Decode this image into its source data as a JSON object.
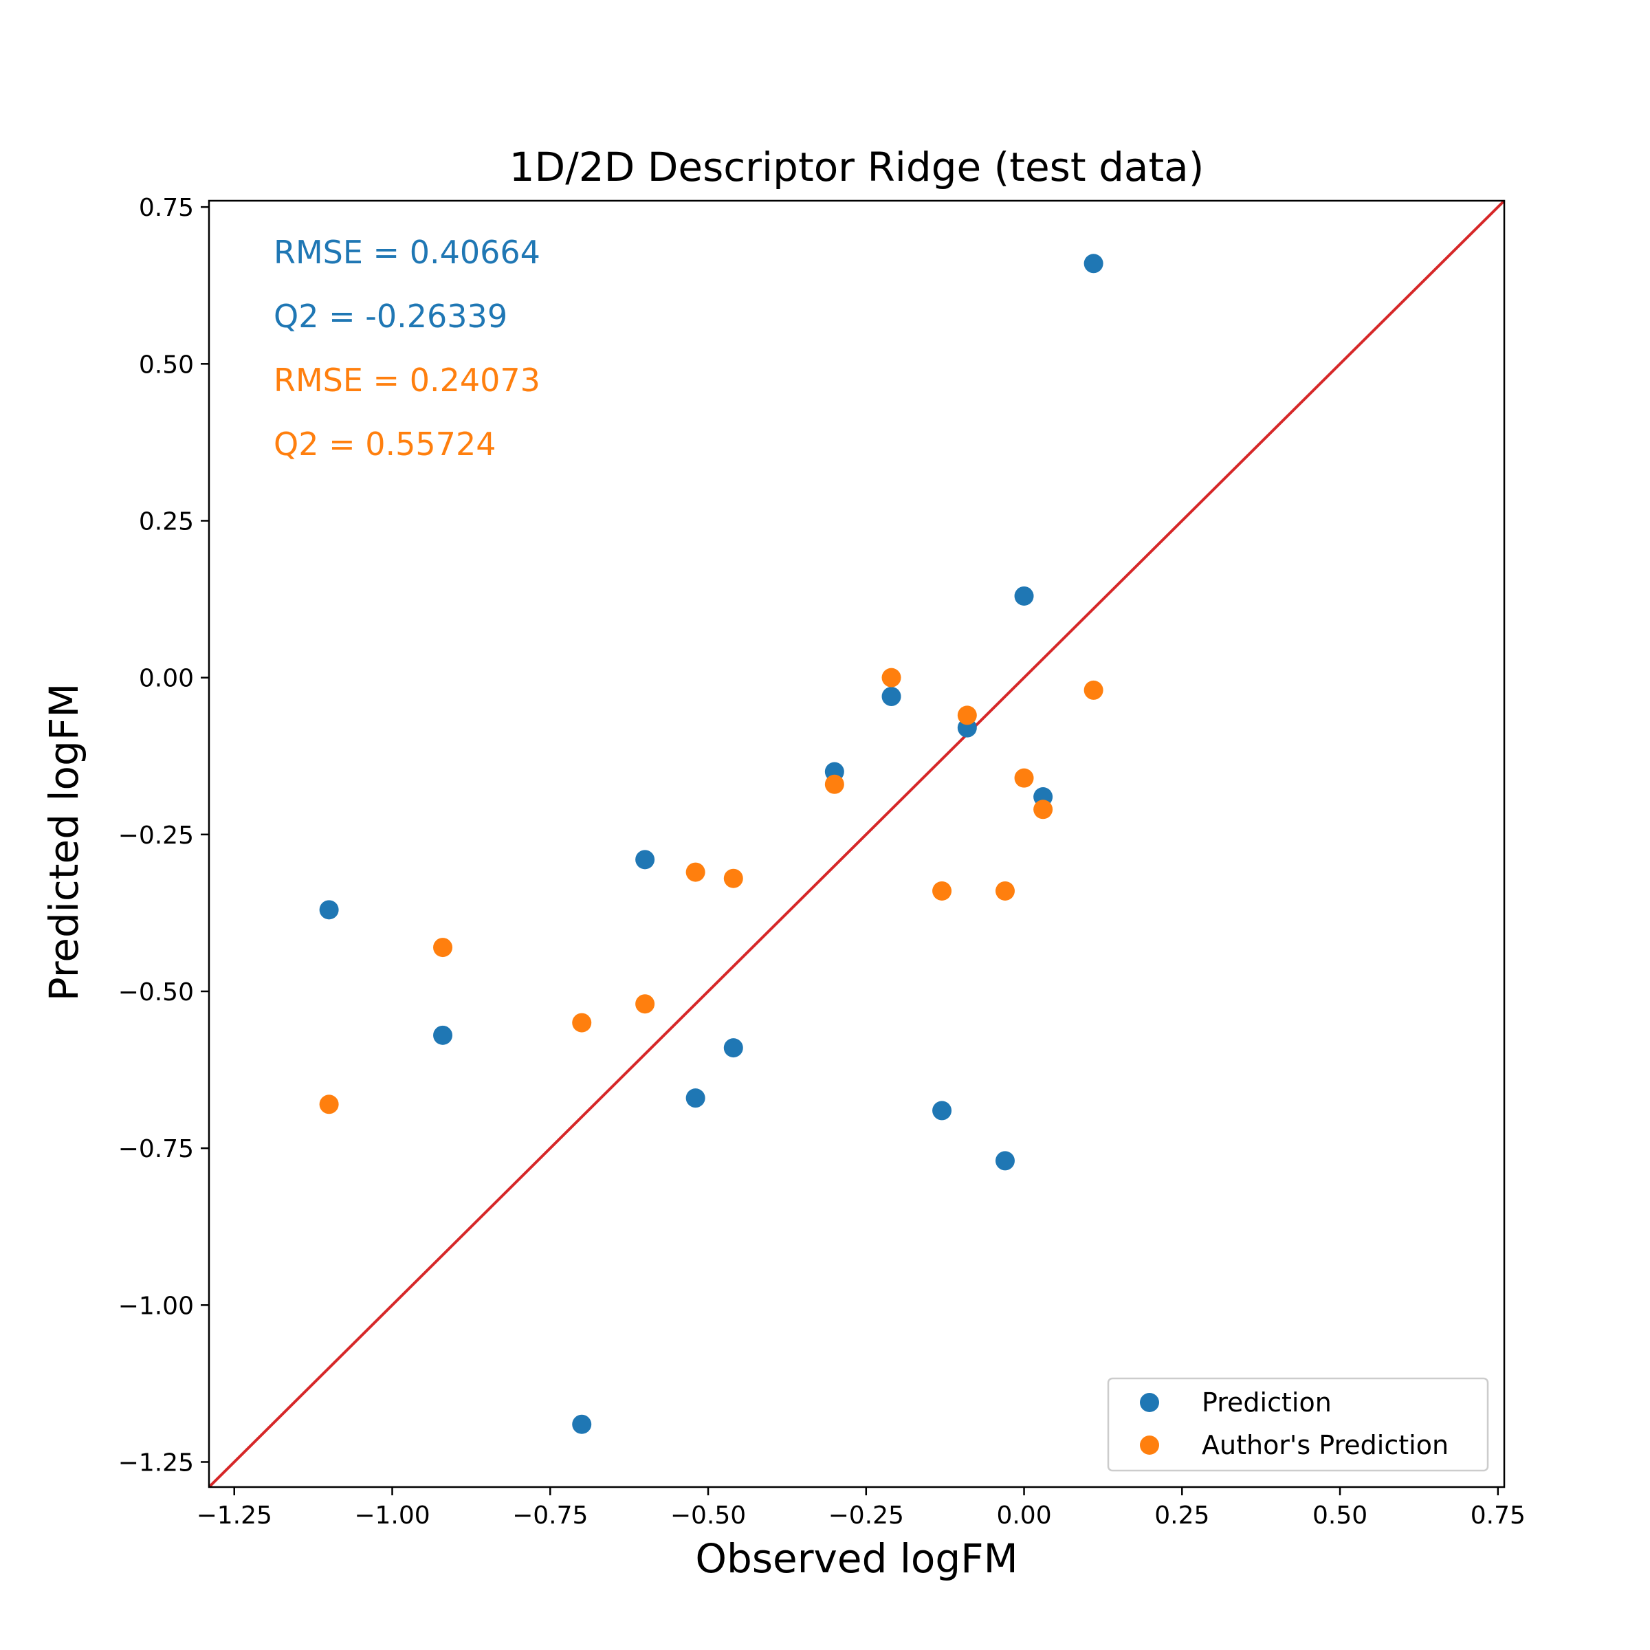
{
  "chart_data": {
    "type": "scatter",
    "title": "1D/2D Descriptor Ridge (test data)",
    "xlabel": "Observed logFM",
    "ylabel": "Predicted logFM",
    "xlim": [
      -1.29,
      0.76
    ],
    "ylim": [
      -1.29,
      0.76
    ],
    "x_ticks": [
      -1.25,
      -1.0,
      -0.75,
      -0.5,
      -0.25,
      0.0,
      0.25,
      0.5,
      0.75
    ],
    "x_tick_labels": [
      "−1.25",
      "−1.00",
      "−0.75",
      "−0.50",
      "−0.25",
      "0.00",
      "0.25",
      "0.50",
      "0.75"
    ],
    "y_ticks": [
      -1.25,
      -1.0,
      -0.75,
      -0.5,
      -0.25,
      0.0,
      0.25,
      0.5,
      0.75
    ],
    "y_tick_labels": [
      "−1.25",
      "−1.00",
      "−0.75",
      "−0.50",
      "−0.25",
      "0.00",
      "0.25",
      "0.50",
      "0.75"
    ],
    "grid": false,
    "legend_position": "lower-right",
    "reference_line": {
      "type": "identity",
      "color": "#d62728"
    },
    "series": [
      {
        "name": "Prediction",
        "color": "#1f77b4",
        "points": [
          {
            "x": 0.11,
            "y": 0.66
          },
          {
            "x": 0.0,
            "y": 0.13
          },
          {
            "x": -0.21,
            "y": -0.03
          },
          {
            "x": -0.09,
            "y": -0.08
          },
          {
            "x": -0.3,
            "y": -0.15
          },
          {
            "x": 0.03,
            "y": -0.19
          },
          {
            "x": -0.6,
            "y": -0.29
          },
          {
            "x": -1.1,
            "y": -0.37
          },
          {
            "x": -0.92,
            "y": -0.57
          },
          {
            "x": -0.46,
            "y": -0.59
          },
          {
            "x": -0.52,
            "y": -0.67
          },
          {
            "x": -0.13,
            "y": -0.69
          },
          {
            "x": -0.03,
            "y": -0.77
          },
          {
            "x": -0.7,
            "y": -1.19
          }
        ]
      },
      {
        "name": "Author's Prediction",
        "color": "#ff7f0e",
        "points": [
          {
            "x": -0.21,
            "y": 0.0
          },
          {
            "x": 0.11,
            "y": -0.02
          },
          {
            "x": -0.09,
            "y": -0.06
          },
          {
            "x": 0.0,
            "y": -0.16
          },
          {
            "x": -0.3,
            "y": -0.17
          },
          {
            "x": 0.03,
            "y": -0.21
          },
          {
            "x": -0.52,
            "y": -0.31
          },
          {
            "x": -0.46,
            "y": -0.32
          },
          {
            "x": -0.13,
            "y": -0.34
          },
          {
            "x": -0.03,
            "y": -0.34
          },
          {
            "x": -0.92,
            "y": -0.43
          },
          {
            "x": -0.6,
            "y": -0.52
          },
          {
            "x": -0.7,
            "y": -0.55
          },
          {
            "x": -1.1,
            "y": -0.68
          }
        ]
      }
    ],
    "annotations": [
      {
        "text": "RMSE = 0.40664",
        "color": "#1f77b4"
      },
      {
        "text": "Q2 = -0.26339",
        "color": "#1f77b4"
      },
      {
        "text": "RMSE = 0.24073",
        "color": "#ff7f0e"
      },
      {
        "text": "Q2 = 0.55724",
        "color": "#ff7f0e"
      }
    ]
  }
}
